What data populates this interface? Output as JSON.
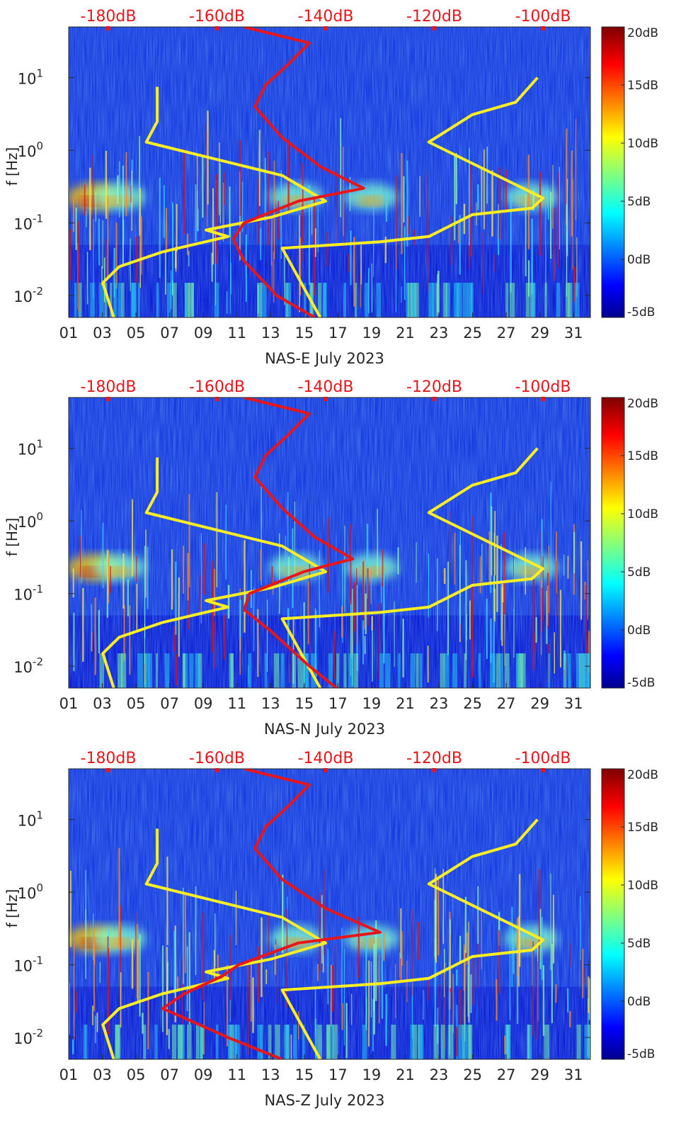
{
  "chart_data": [
    {
      "type": "heatmap",
      "component": "NAS-E",
      "xlabel": "NAS-E July 2023",
      "ylabel": "f [Hz]",
      "x_ticks": [
        "01",
        "03",
        "05",
        "07",
        "09",
        "11",
        "13",
        "15",
        "17",
        "19",
        "21",
        "23",
        "25",
        "27",
        "29",
        "31"
      ],
      "y_ticks": [
        {
          "v": 0.01,
          "base": "10",
          "exp": "-2"
        },
        {
          "v": 0.1,
          "base": "10",
          "exp": "-1"
        },
        {
          "v": 1,
          "base": "10",
          "exp": "0"
        },
        {
          "v": 10,
          "base": "10",
          "exp": "1"
        }
      ],
      "ylim_hz": [
        0.005,
        50
      ],
      "xlim_day": [
        1,
        32
      ],
      "top_axis_labels": [
        "-180dB",
        "-160dB",
        "-140dB",
        "-120dB",
        "-100dB"
      ],
      "top_axis_db": [
        -180,
        -160,
        -140,
        -120,
        -100
      ],
      "colorbar": {
        "labels": [
          "20dB",
          "15dB",
          "10dB",
          "5dB",
          "0dB",
          "-5dB"
        ],
        "range_db": [
          -5,
          20
        ]
      },
      "psd_curve": {
        "color": "#e8151b",
        "points": [
          [
            0.005,
            -142
          ],
          [
            0.01,
            -149
          ],
          [
            0.03,
            -155
          ],
          [
            0.06,
            -157
          ],
          [
            0.1,
            -155
          ],
          [
            0.2,
            -145
          ],
          [
            0.3,
            -133
          ],
          [
            0.6,
            -141
          ],
          [
            1.5,
            -148
          ],
          [
            4,
            -153
          ],
          [
            8,
            -151
          ],
          [
            15,
            -147
          ],
          [
            30,
            -143
          ],
          [
            50,
            -155
          ]
        ]
      },
      "noise_model_low": {
        "color": "#ffee22",
        "points": [
          [
            0.005,
            -179
          ],
          [
            0.015,
            -181
          ],
          [
            0.025,
            -178
          ],
          [
            0.04,
            -170
          ],
          [
            0.065,
            -158
          ],
          [
            0.08,
            -162
          ],
          [
            0.12,
            -150
          ],
          [
            0.2,
            -140
          ],
          [
            0.45,
            -148
          ],
          [
            1.3,
            -173
          ],
          [
            2.5,
            -171
          ],
          [
            5,
            -171
          ],
          [
            7.5,
            -171
          ]
        ]
      },
      "noise_model_high": {
        "color": "#ffee22",
        "points": [
          [
            0.005,
            -141
          ],
          [
            0.045,
            -148
          ],
          [
            0.055,
            -130
          ],
          [
            0.065,
            -121
          ],
          [
            0.13,
            -113
          ],
          [
            0.16,
            -102
          ],
          [
            0.22,
            -100
          ],
          [
            1.3,
            -121
          ],
          [
            3.1,
            -113
          ],
          [
            4.6,
            -105
          ],
          [
            10,
            -101
          ]
        ]
      },
      "bright_bands": [
        {
          "fmin": 0.15,
          "fmax": 0.35,
          "days": [
            2.5,
            4,
            14.5,
            19,
            28.5
          ]
        }
      ]
    },
    {
      "type": "heatmap",
      "component": "NAS-N",
      "xlabel": "NAS-N July 2023",
      "ylabel": "f [Hz]",
      "x_ticks": [
        "01",
        "03",
        "05",
        "07",
        "09",
        "11",
        "13",
        "15",
        "17",
        "19",
        "21",
        "23",
        "25",
        "27",
        "29",
        "31"
      ],
      "y_ticks": [
        {
          "v": 0.01,
          "base": "10",
          "exp": "-2"
        },
        {
          "v": 0.1,
          "base": "10",
          "exp": "-1"
        },
        {
          "v": 1,
          "base": "10",
          "exp": "0"
        },
        {
          "v": 10,
          "base": "10",
          "exp": "1"
        }
      ],
      "ylim_hz": [
        0.005,
        50
      ],
      "xlim_day": [
        1,
        32
      ],
      "top_axis_labels": [
        "-180dB",
        "-160dB",
        "-140dB",
        "-120dB",
        "-100dB"
      ],
      "top_axis_db": [
        -180,
        -160,
        -140,
        -120,
        -100
      ],
      "colorbar": {
        "labels": [
          "20dB",
          "15dB",
          "10dB",
          "5dB",
          "0dB",
          "-5dB"
        ],
        "range_db": [
          -5,
          20
        ]
      },
      "psd_curve": {
        "color": "#e8151b",
        "points": [
          [
            0.005,
            -138
          ],
          [
            0.01,
            -143
          ],
          [
            0.03,
            -150
          ],
          [
            0.06,
            -155
          ],
          [
            0.1,
            -154
          ],
          [
            0.2,
            -144
          ],
          [
            0.3,
            -135
          ],
          [
            0.6,
            -142
          ],
          [
            1.5,
            -148
          ],
          [
            4,
            -153
          ],
          [
            8,
            -151
          ],
          [
            15,
            -147
          ],
          [
            30,
            -143
          ],
          [
            50,
            -155
          ]
        ]
      },
      "noise_model_low": {
        "color": "#ffee22",
        "points": [
          [
            0.005,
            -179
          ],
          [
            0.015,
            -181
          ],
          [
            0.025,
            -178
          ],
          [
            0.04,
            -170
          ],
          [
            0.065,
            -158
          ],
          [
            0.08,
            -162
          ],
          [
            0.12,
            -150
          ],
          [
            0.2,
            -140
          ],
          [
            0.45,
            -148
          ],
          [
            1.3,
            -173
          ],
          [
            2.5,
            -171
          ],
          [
            5,
            -171
          ],
          [
            7.5,
            -171
          ]
        ]
      },
      "noise_model_high": {
        "color": "#ffee22",
        "points": [
          [
            0.005,
            -141
          ],
          [
            0.045,
            -148
          ],
          [
            0.055,
            -130
          ],
          [
            0.065,
            -121
          ],
          [
            0.13,
            -113
          ],
          [
            0.16,
            -102
          ],
          [
            0.22,
            -100
          ],
          [
            1.3,
            -121
          ],
          [
            3.1,
            -113
          ],
          [
            4.6,
            -105
          ],
          [
            10,
            -101
          ]
        ]
      },
      "bright_bands": [
        {
          "fmin": 0.15,
          "fmax": 0.35,
          "days": [
            2.5,
            4,
            14.5,
            19,
            28.5
          ]
        }
      ]
    },
    {
      "type": "heatmap",
      "component": "NAS-Z",
      "xlabel": "NAS-Z July 2023",
      "ylabel": "f [Hz]",
      "x_ticks": [
        "01",
        "03",
        "05",
        "07",
        "09",
        "11",
        "13",
        "15",
        "17",
        "19",
        "21",
        "23",
        "25",
        "27",
        "29",
        "31"
      ],
      "y_ticks": [
        {
          "v": 0.01,
          "base": "10",
          "exp": "-2"
        },
        {
          "v": 0.1,
          "base": "10",
          "exp": "-1"
        },
        {
          "v": 1,
          "base": "10",
          "exp": "0"
        },
        {
          "v": 10,
          "base": "10",
          "exp": "1"
        }
      ],
      "ylim_hz": [
        0.005,
        50
      ],
      "xlim_day": [
        1,
        32
      ],
      "top_axis_labels": [
        "-180dB",
        "-160dB",
        "-140dB",
        "-120dB",
        "-100dB"
      ],
      "top_axis_db": [
        -180,
        -160,
        -140,
        -120,
        -100
      ],
      "colorbar": {
        "labels": [
          "20dB",
          "15dB",
          "10dB",
          "5dB",
          "0dB",
          "-5dB"
        ],
        "range_db": [
          -5,
          20
        ]
      },
      "psd_curve": {
        "color": "#e8151b",
        "points": [
          [
            0.005,
            -148
          ],
          [
            0.01,
            -158
          ],
          [
            0.02,
            -167
          ],
          [
            0.025,
            -170
          ],
          [
            0.04,
            -166
          ],
          [
            0.07,
            -159
          ],
          [
            0.1,
            -156
          ],
          [
            0.2,
            -145
          ],
          [
            0.28,
            -130
          ],
          [
            0.6,
            -140
          ],
          [
            1.5,
            -148
          ],
          [
            4,
            -153
          ],
          [
            8,
            -151
          ],
          [
            15,
            -147
          ],
          [
            30,
            -143
          ],
          [
            50,
            -155
          ]
        ]
      },
      "noise_model_low": {
        "color": "#ffee22",
        "points": [
          [
            0.005,
            -179
          ],
          [
            0.015,
            -181
          ],
          [
            0.025,
            -178
          ],
          [
            0.04,
            -170
          ],
          [
            0.065,
            -158
          ],
          [
            0.08,
            -162
          ],
          [
            0.12,
            -150
          ],
          [
            0.2,
            -140
          ],
          [
            0.45,
            -148
          ],
          [
            1.3,
            -173
          ],
          [
            2.5,
            -171
          ],
          [
            5,
            -171
          ],
          [
            7.5,
            -171
          ]
        ]
      },
      "noise_model_high": {
        "color": "#ffee22",
        "points": [
          [
            0.005,
            -141
          ],
          [
            0.045,
            -148
          ],
          [
            0.055,
            -130
          ],
          [
            0.065,
            -121
          ],
          [
            0.13,
            -113
          ],
          [
            0.16,
            -102
          ],
          [
            0.22,
            -100
          ],
          [
            1.3,
            -121
          ],
          [
            3.1,
            -113
          ],
          [
            4.6,
            -105
          ],
          [
            10,
            -101
          ]
        ]
      },
      "bright_bands": [
        {
          "fmin": 0.15,
          "fmax": 0.35,
          "days": [
            2.5,
            4,
            14.5,
            19,
            28.5
          ]
        }
      ]
    }
  ]
}
